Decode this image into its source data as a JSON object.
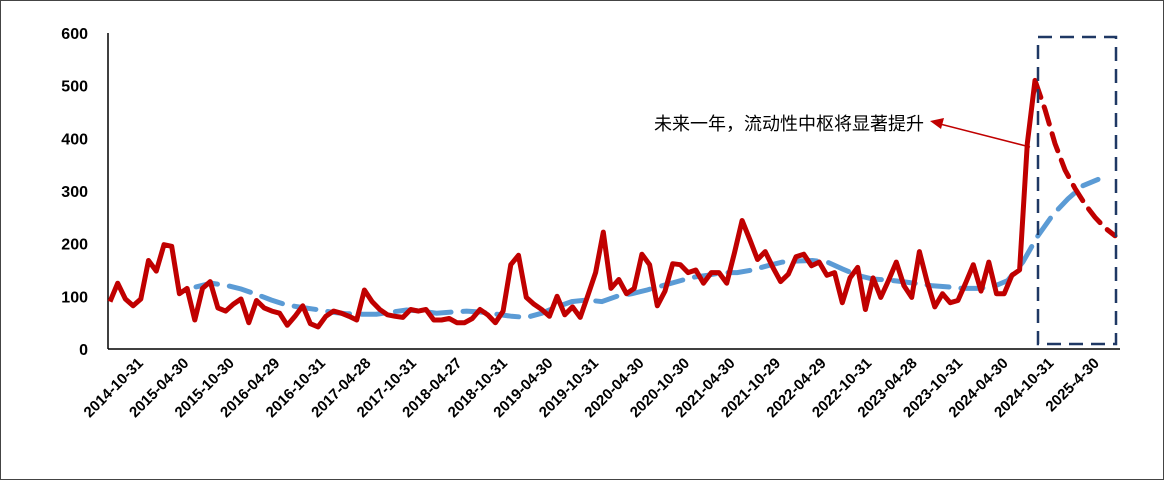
{
  "chart_data": {
    "type": "line",
    "y_ticks": [
      "0",
      "100",
      "200",
      "300",
      "400",
      "500",
      "600"
    ],
    "ylim": [
      0,
      600
    ],
    "x_tick_labels": [
      "2014-10-31",
      "2015-04-30",
      "2015-10-30",
      "2016-04-29",
      "2016-10-31",
      "2017-04-28",
      "2017-10-31",
      "2018-04-27",
      "2018-10-31",
      "2019-04-30",
      "2019-10-31",
      "2020-04-30",
      "2020-10-30",
      "2021-04-30",
      "2021-10-29",
      "2022-04-29",
      "2022-10-31",
      "2023-04-28",
      "2023-10-31",
      "2024-04-30",
      "2024-10-31",
      "2025-4-30"
    ],
    "annotation": "未来一年，流动性中枢将显著提升",
    "colors": {
      "main": "#c00000",
      "trend": "#5b9bd5",
      "box": "#1f3864",
      "axis": "#000000"
    },
    "series": [
      {
        "style": "solid",
        "values": [
          90,
          125,
          95,
          82,
          95,
          168,
          148,
          198,
          195,
          105,
          115,
          55,
          115,
          128,
          78,
          72,
          85,
          95,
          50,
          92,
          78,
          72,
          68,
          45,
          62,
          82,
          48,
          42,
          62,
          72,
          68,
          62,
          55,
          112,
          90,
          75,
          65,
          62,
          60,
          75,
          72,
          75,
          55,
          55,
          58,
          50,
          50,
          58,
          75,
          65,
          50,
          72,
          160,
          178,
          98,
          85,
          75,
          62,
          100,
          65,
          80,
          60,
          102,
          145,
          222,
          115,
          132,
          105,
          115,
          180,
          160,
          82,
          110,
          162,
          160,
          145,
          150,
          125,
          145,
          145,
          125,
          182,
          244,
          208,
          170,
          185,
          155,
          128,
          142,
          175,
          180,
          158,
          165,
          140,
          145,
          88,
          135,
          155,
          75,
          135,
          98,
          130,
          165,
          120,
          98,
          185,
          128,
          80,
          105,
          88,
          92,
          125,
          160,
          110,
          165,
          105,
          105,
          140,
          150,
          390,
          510
        ]
      },
      {
        "style": "dashed-forecast",
        "values": [
          510,
          455,
          390,
          340,
          305,
          275,
          250,
          230,
          215
        ]
      },
      {
        "style": "dashed-trend",
        "values": [
          118,
          125,
          121,
          114,
          104,
          93,
          84,
          79,
          75,
          70,
          67,
          66,
          66,
          70,
          74,
          72,
          68,
          70,
          72,
          70,
          66,
          62,
          60,
          68,
          80,
          90,
          93,
          90,
          100,
          105,
          112,
          120,
          128,
          136,
          140,
          145,
          145,
          150,
          158,
          165,
          167,
          168,
          165,
          152,
          140,
          133,
          131,
          128,
          124,
          120,
          118,
          115,
          115,
          118,
          130,
          165,
          215,
          255,
          285,
          310,
          322
        ]
      }
    ]
  }
}
